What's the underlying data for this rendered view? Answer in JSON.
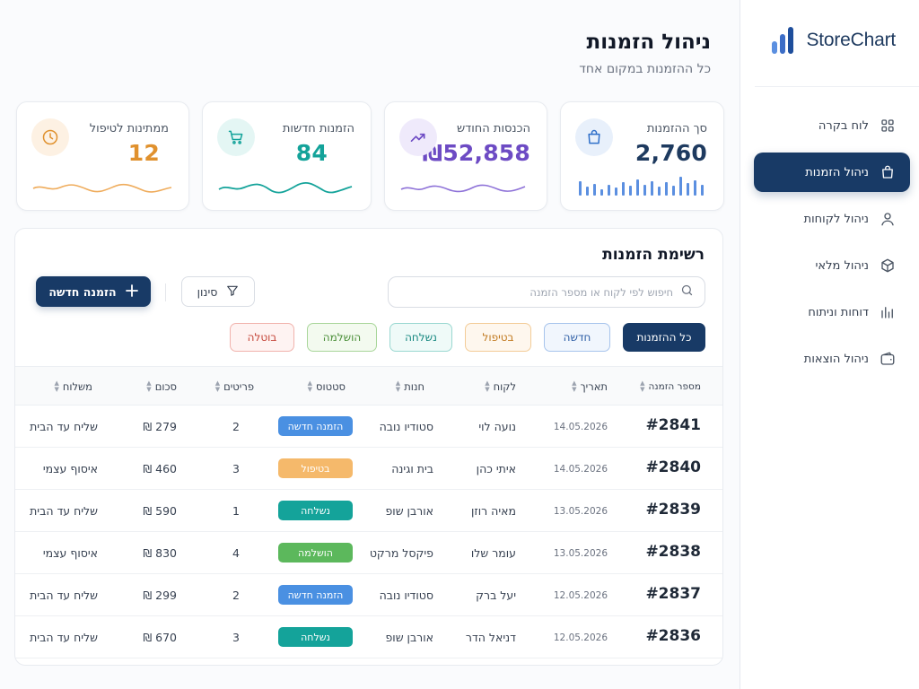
{
  "app": {
    "logo_name": "StoreChart",
    "accent": "#183a66"
  },
  "sidebar": {
    "items": [
      {
        "label": "לוח בקרה",
        "icon": "dashboard-grid-icon",
        "active": false
      },
      {
        "label": "ניהול הזמנות",
        "icon": "shopping-bag-icon",
        "active": true
      },
      {
        "label": "ניהול לקוחות",
        "icon": "user-icon",
        "active": false
      },
      {
        "label": "ניהול מלאי",
        "icon": "box-icon",
        "active": false
      },
      {
        "label": "דוחות וניתוח",
        "icon": "bar-chart-icon",
        "active": false
      },
      {
        "label": "ניהול הוצאות",
        "icon": "wallet-icon",
        "active": false
      }
    ]
  },
  "header": {
    "title": "ניהול הזמנות",
    "subtitle": "כל ההזמנות במקום אחד"
  },
  "stats": [
    {
      "label": "סך ההזמנות",
      "value": "2,760",
      "color": "#1e3a5f",
      "icon": "shopping-bag-icon"
    },
    {
      "label": "הכנסות החודש",
      "value": "₪52,858",
      "color": "#6d4bc4",
      "icon": "trending-up-icon"
    },
    {
      "label": "הזמנות חדשות",
      "value": "84",
      "color": "#14a39a",
      "icon": "shopping-cart-icon"
    },
    {
      "label": "ממתינות לטיפול",
      "value": "12",
      "color": "#e0912e",
      "icon": "clock-icon"
    }
  ],
  "orders": {
    "title": "רשימת הזמנות",
    "new_button": "הזמנה חדשה",
    "filter_button": "סינון",
    "search_placeholder": "חיפוש לפי לקוח או מספר הזמנה",
    "filters": [
      "כל ההזמנות",
      "חדשה",
      "בטיפול",
      "נשלחה",
      "הושלמה",
      "בוטלה"
    ],
    "active_filter": "כל ההזמנות",
    "columns": [
      "מספר הזמנה",
      "תאריך",
      "לקוח",
      "חנות",
      "סטטוס",
      "פריטים",
      "סכום",
      "משלוח"
    ],
    "rows": [
      {
        "id": "#2841",
        "date": "14.05.2026",
        "customer": "נועה לוי",
        "store": "סטודיו נובה",
        "status": "הזמנה חדשה",
        "status_color": "#4a90e2",
        "items": "2",
        "amount": "₪ 279",
        "shipping": "שליח עד הבית"
      },
      {
        "id": "#2840",
        "date": "14.05.2026",
        "customer": "איתי כהן",
        "store": "בית וגינה",
        "status": "בטיפול",
        "status_color": "#f5b96b",
        "items": "3",
        "amount": "₪ 460",
        "shipping": "איסוף עצמי"
      },
      {
        "id": "#2839",
        "date": "13.05.2026",
        "customer": "מאיה רוזן",
        "store": "אורבן שופ",
        "status": "נשלחה",
        "status_color": "#14a39a",
        "items": "1",
        "amount": "₪ 590",
        "shipping": "שליח עד הבית"
      },
      {
        "id": "#2838",
        "date": "13.05.2026",
        "customer": "עומר שלו",
        "store": "פיקסל מרקט",
        "status": "הושלמה",
        "status_color": "#5cb85c",
        "items": "4",
        "amount": "₪ 830",
        "shipping": "איסוף עצמי"
      },
      {
        "id": "#2837",
        "date": "12.05.2026",
        "customer": "יעל ברק",
        "store": "סטודיו נובה",
        "status": "הזמנה חדשה",
        "status_color": "#4a90e2",
        "items": "2",
        "amount": "₪ 299",
        "shipping": "שליח עד הבית"
      },
      {
        "id": "#2836",
        "date": "12.05.2026",
        "customer": "דניאל הדר",
        "store": "אורבן שופ",
        "status": "נשלחה",
        "status_color": "#14a39a",
        "items": "3",
        "amount": "₪ 670",
        "shipping": "שליח עד הבית"
      }
    ]
  }
}
